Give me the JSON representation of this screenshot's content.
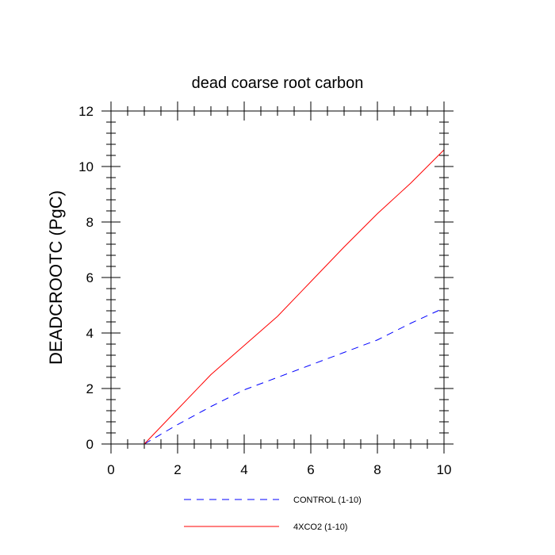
{
  "chart_data": {
    "type": "line",
    "title": "dead coarse root carbon",
    "xlabel": "",
    "ylabel": "DEADCROOTC  (PgC)",
    "xlim": [
      0,
      10
    ],
    "ylim": [
      0,
      12
    ],
    "xticks": [
      0,
      2,
      4,
      6,
      8,
      10
    ],
    "yticks": [
      0,
      2,
      4,
      6,
      8,
      10,
      12
    ],
    "grid": false,
    "legend_position": "bottom",
    "series": [
      {
        "name": "CONTROL (1-10)",
        "color": "#0000ff",
        "dash": "dashed",
        "x": [
          1,
          2,
          3,
          4,
          5,
          6,
          7,
          8,
          9,
          10
        ],
        "y": [
          0.0,
          0.7,
          1.35,
          1.95,
          2.4,
          2.85,
          3.3,
          3.75,
          4.35,
          4.9
        ]
      },
      {
        "name": "4XCO2 (1-10)",
        "color": "#ff0000",
        "dash": "solid",
        "x": [
          1,
          2,
          3,
          4,
          5,
          6,
          7,
          8,
          9,
          10
        ],
        "y": [
          0.0,
          1.25,
          2.5,
          3.55,
          4.6,
          5.85,
          7.1,
          8.3,
          9.4,
          10.6
        ]
      }
    ]
  }
}
